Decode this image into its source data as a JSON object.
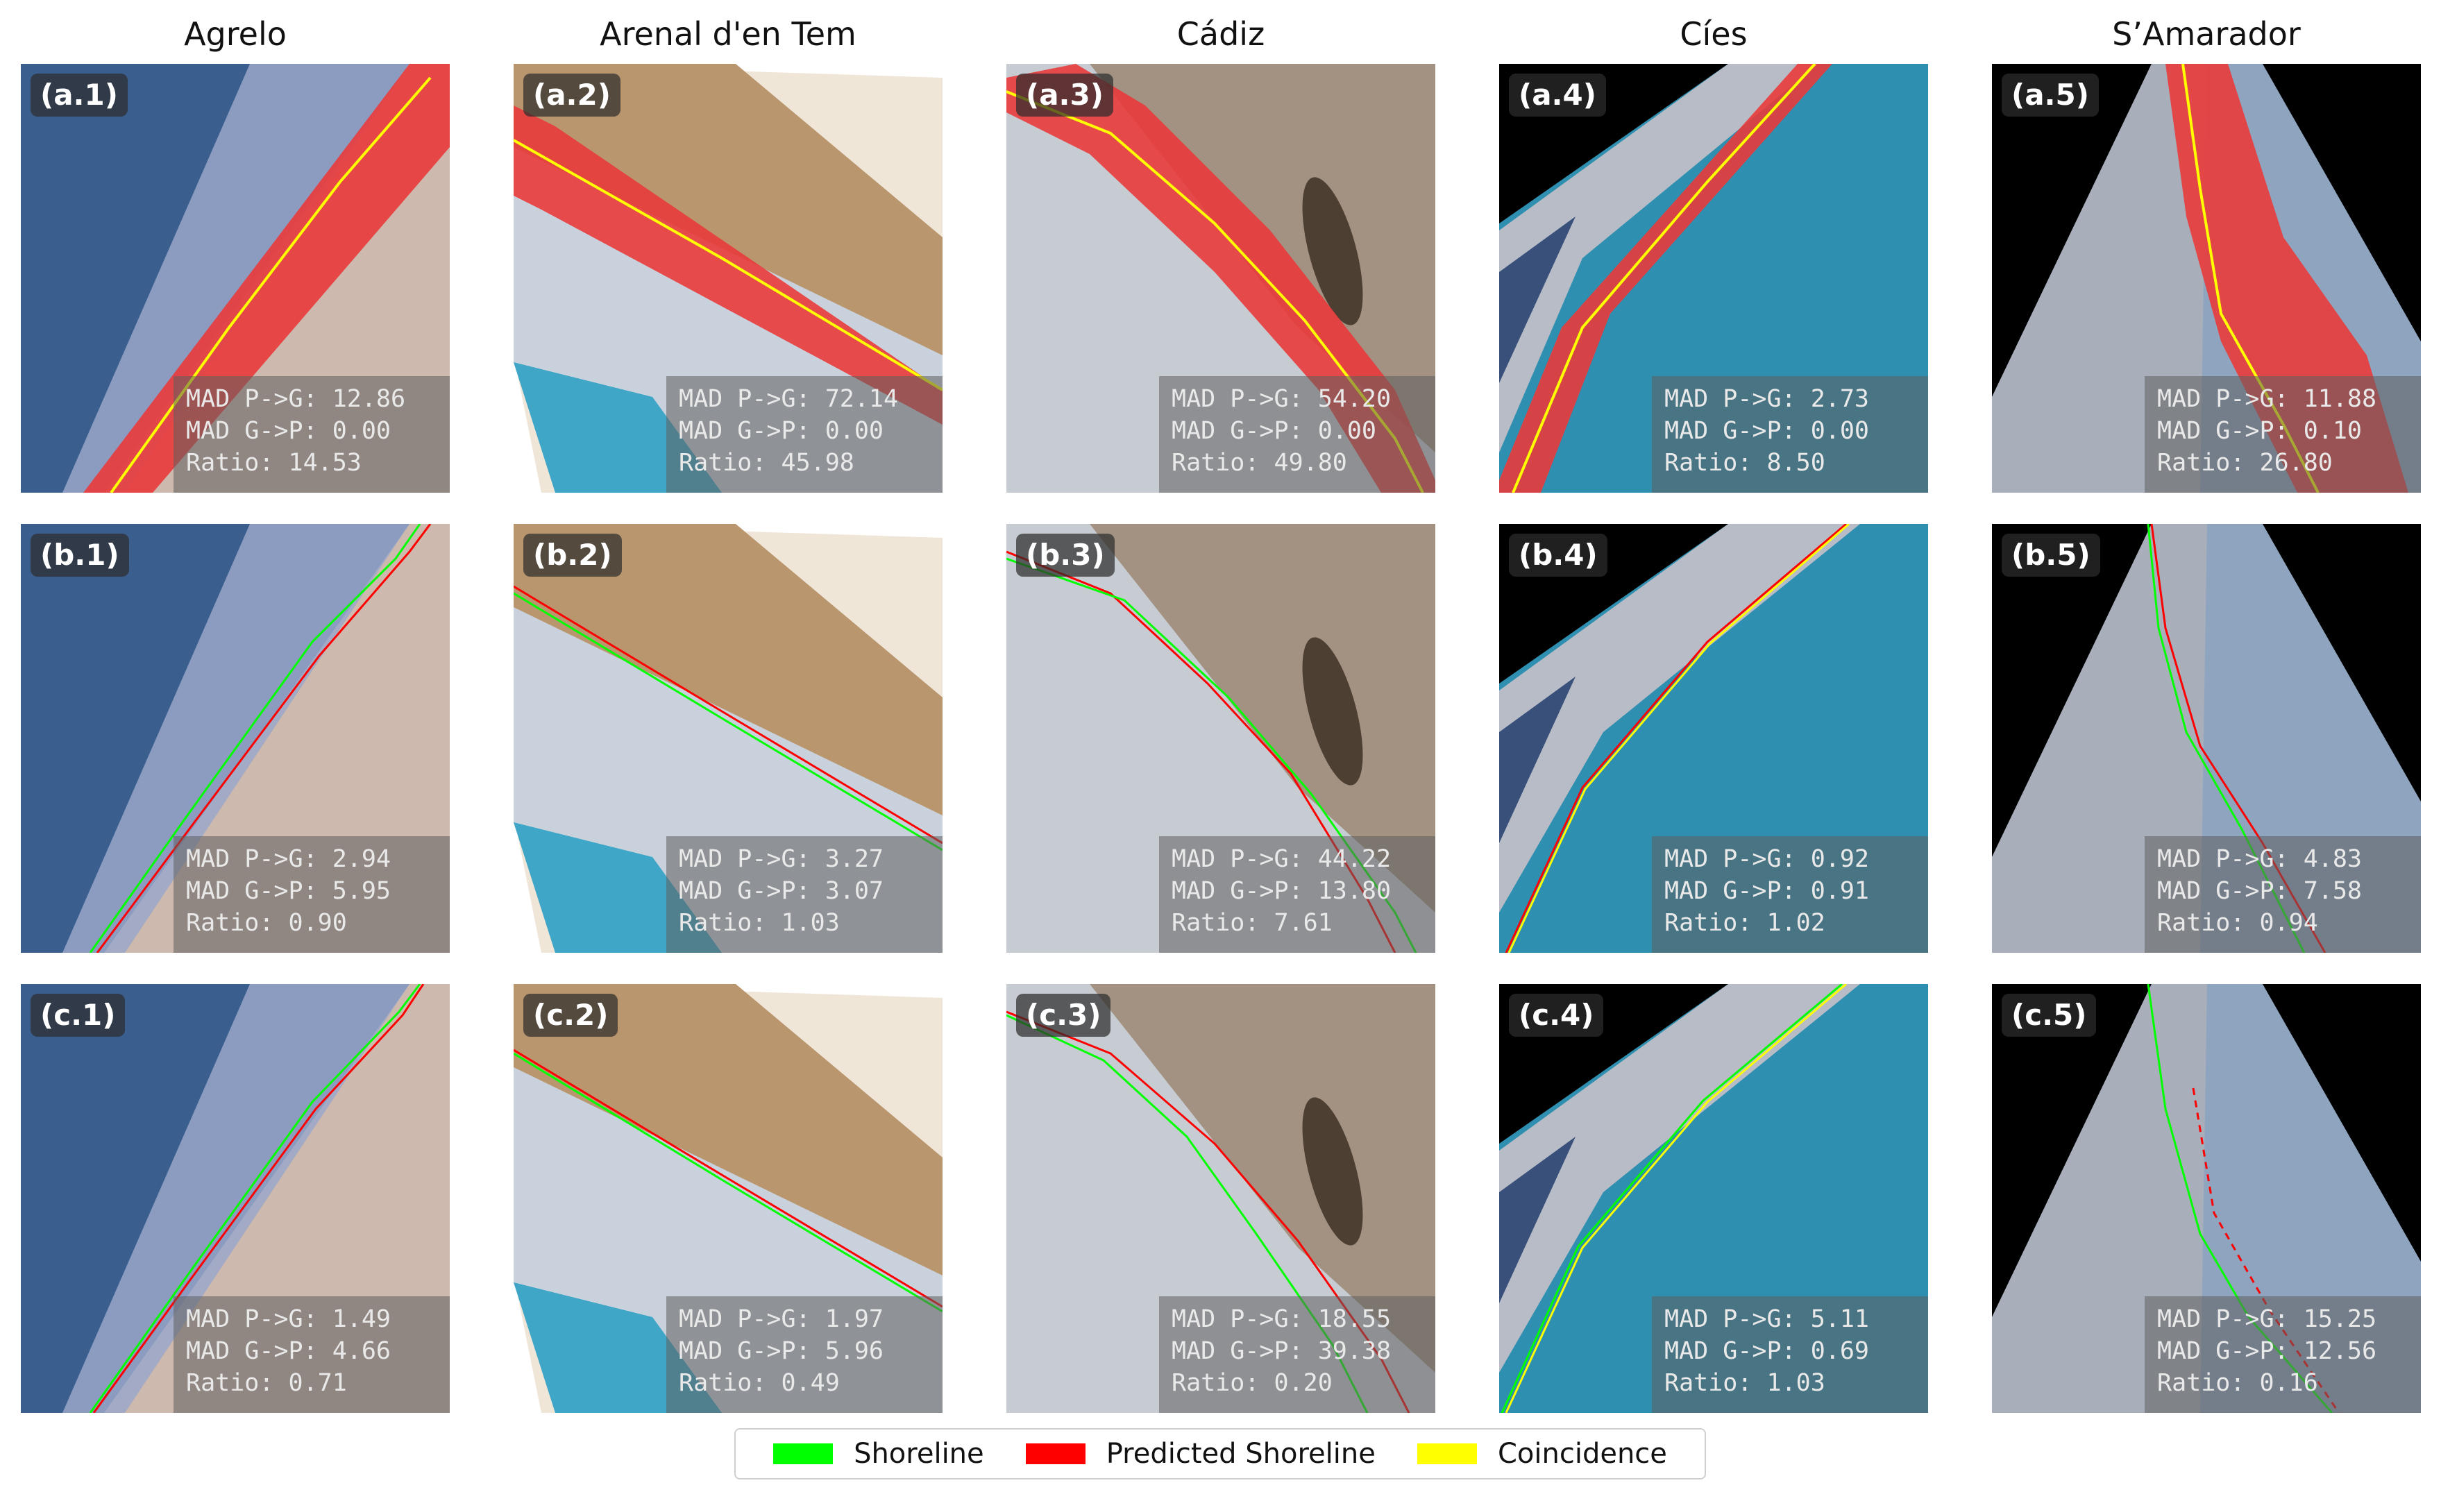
{
  "columns": [
    "Agrelo",
    "Arenal d'en Tem",
    "Cádiz",
    "Cíes",
    "S’Amarador"
  ],
  "colors": {
    "shoreline": "#00ff00",
    "predicted": "#ff0000",
    "coincidence": "#ffff00"
  },
  "legend": [
    {
      "label": "Shoreline",
      "color": "#00ff00"
    },
    {
      "label": "Predicted Shoreline",
      "color": "#ff0000"
    },
    {
      "label": "Coincidence",
      "color": "#ffff00"
    }
  ],
  "rows": [
    {
      "row": "a",
      "panels": [
        {
          "tag": "(a.1)",
          "stats": [
            "MAD P->G: 12.86",
            "MAD G->P: 0.00",
            "Ratio: 14.53"
          ]
        },
        {
          "tag": "(a.2)",
          "stats": [
            "MAD P->G: 72.14",
            "MAD G->P: 0.00",
            "Ratio: 45.98"
          ]
        },
        {
          "tag": "(a.3)",
          "stats": [
            "MAD P->G: 54.20",
            "MAD G->P: 0.00",
            "Ratio: 49.80"
          ]
        },
        {
          "tag": "(a.4)",
          "stats": [
            "MAD P->G: 2.73",
            "MAD G->P: 0.00",
            "Ratio: 8.50"
          ]
        },
        {
          "tag": "(a.5)",
          "stats": [
            "MAD P->G: 11.88",
            "MAD G->P: 0.10",
            "Ratio: 26.80"
          ]
        }
      ]
    },
    {
      "row": "b",
      "panels": [
        {
          "tag": "(b.1)",
          "stats": [
            "MAD P->G: 2.94",
            "MAD G->P: 5.95",
            "Ratio: 0.90"
          ]
        },
        {
          "tag": "(b.2)",
          "stats": [
            "MAD P->G: 3.27",
            "MAD G->P: 3.07",
            "Ratio: 1.03"
          ]
        },
        {
          "tag": "(b.3)",
          "stats": [
            "MAD P->G: 44.22",
            "MAD G->P: 13.80",
            "Ratio: 7.61"
          ]
        },
        {
          "tag": "(b.4)",
          "stats": [
            "MAD P->G: 0.92",
            "MAD G->P: 0.91",
            "Ratio: 1.02"
          ]
        },
        {
          "tag": "(b.5)",
          "stats": [
            "MAD P->G: 4.83",
            "MAD G->P: 7.58",
            "Ratio: 0.94"
          ]
        }
      ]
    },
    {
      "row": "c",
      "panels": [
        {
          "tag": "(c.1)",
          "stats": [
            "MAD P->G: 1.49",
            "MAD G->P: 4.66",
            "Ratio: 0.71"
          ]
        },
        {
          "tag": "(c.2)",
          "stats": [
            "MAD P->G: 1.97",
            "MAD G->P: 5.96",
            "Ratio: 0.49"
          ]
        },
        {
          "tag": "(c.3)",
          "stats": [
            "MAD P->G: 18.55",
            "MAD G->P: 39.38",
            "Ratio: 0.20"
          ]
        },
        {
          "tag": "(c.4)",
          "stats": [
            "MAD P->G: 5.11",
            "MAD G->P: 0.69",
            "Ratio: 1.03"
          ]
        },
        {
          "tag": "(c.5)",
          "stats": [
            "MAD P->G: 15.25",
            "MAD G->P: 12.56",
            "Ratio: 0.16"
          ]
        }
      ]
    }
  ]
}
